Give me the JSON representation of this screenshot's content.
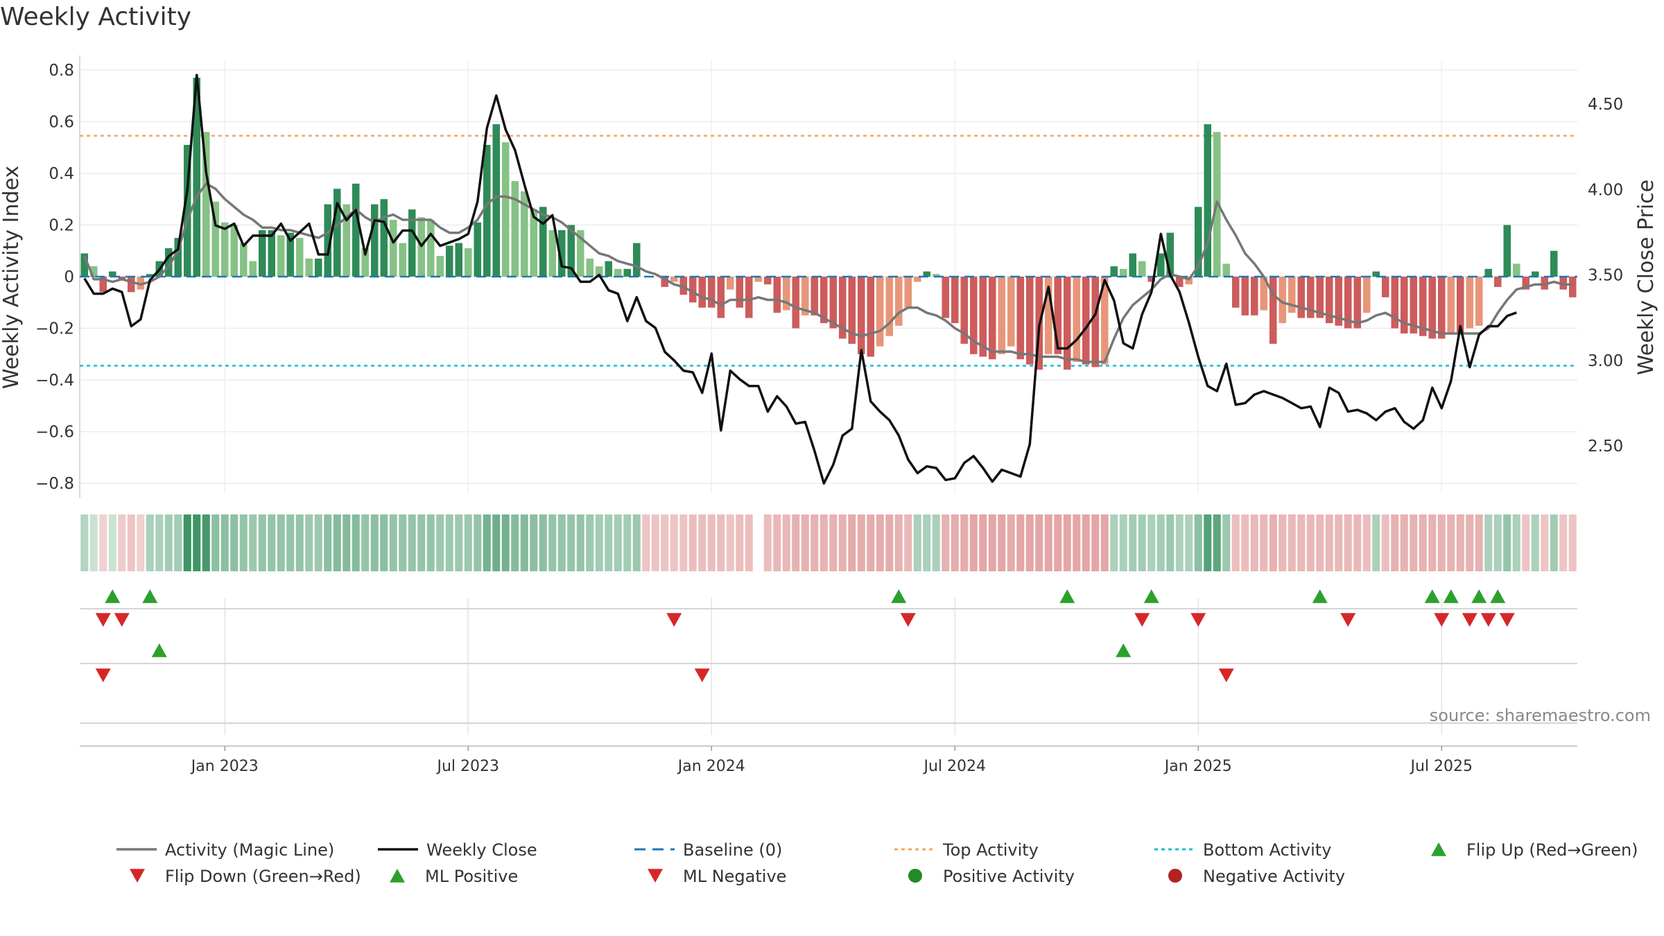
{
  "chart_data": {
    "type": "bar",
    "title": "Weekly Activity",
    "ylabel": "Weekly Activity Index",
    "y2label": "Weekly Close Price",
    "ylim": [
      -0.84,
      0.84
    ],
    "y2lim": [
      2.22,
      4.76
    ],
    "yticks": [
      {
        "v": 0.8,
        "label": "0.8"
      },
      {
        "v": 0.6,
        "label": "0.6"
      },
      {
        "v": 0.4,
        "label": "0.4"
      },
      {
        "v": 0.2,
        "label": "0.2"
      },
      {
        "v": 0,
        "label": "0"
      },
      {
        "v": -0.2,
        "label": "−0.2"
      },
      {
        "v": -0.4,
        "label": "−0.4"
      },
      {
        "v": -0.6,
        "label": "−0.6"
      },
      {
        "v": -0.8,
        "label": "−0.8"
      }
    ],
    "y2ticks": [
      {
        "v": 4.5,
        "label": "4.50"
      },
      {
        "v": 4.0,
        "label": "4.00"
      },
      {
        "v": 3.5,
        "label": "3.50"
      },
      {
        "v": 3.0,
        "label": "3.00"
      },
      {
        "v": 2.5,
        "label": "2.50"
      }
    ],
    "xticks": [
      {
        "i": 15,
        "label": "Jan 2023"
      },
      {
        "i": 41,
        "label": "Jul 2023"
      },
      {
        "i": 67,
        "label": "Jan 2024"
      },
      {
        "i": 93,
        "label": "Jul 2024"
      },
      {
        "i": 119,
        "label": "Jan 2025"
      },
      {
        "i": 145,
        "label": "Jul 2025"
      }
    ],
    "top_activity": 0.545,
    "bottom_activity": -0.345,
    "baseline": 0,
    "activity_bars": [
      0.09,
      0.04,
      -0.06,
      0.02,
      -0.01,
      -0.06,
      -0.05,
      0.01,
      0.06,
      0.11,
      0.15,
      0.51,
      0.77,
      0.56,
      0.29,
      0.21,
      0.2,
      0.13,
      0.06,
      0.18,
      0.18,
      0.16,
      0.17,
      0.15,
      0.07,
      0.07,
      0.28,
      0.34,
      0.28,
      0.36,
      0.11,
      0.28,
      0.3,
      0.22,
      0.13,
      0.26,
      0.23,
      0.22,
      0.08,
      0.12,
      0.13,
      0.11,
      0.21,
      0.51,
      0.59,
      0.52,
      0.37,
      0.33,
      0.26,
      0.27,
      0.18,
      0.18,
      0.2,
      0.18,
      0.07,
      0.04,
      0.06,
      0.03,
      0.03,
      0.13,
      0.0,
      0.0,
      -0.04,
      -0.02,
      -0.07,
      -0.1,
      -0.12,
      -0.12,
      -0.16,
      -0.05,
      -0.12,
      -0.16,
      -0.02,
      -0.03,
      -0.14,
      -0.13,
      -0.2,
      -0.15,
      -0.15,
      -0.18,
      -0.2,
      -0.24,
      -0.26,
      -0.3,
      -0.31,
      -0.27,
      -0.23,
      -0.19,
      -0.12,
      -0.02,
      0.02,
      0.01,
      -0.16,
      -0.18,
      -0.26,
      -0.3,
      -0.31,
      -0.32,
      -0.3,
      -0.27,
      -0.32,
      -0.34,
      -0.36,
      -0.3,
      -0.3,
      -0.36,
      -0.33,
      -0.34,
      -0.35,
      -0.34,
      0.04,
      0.03,
      0.09,
      0.06,
      -0.02,
      0.09,
      0.17,
      -0.04,
      -0.03,
      0.27,
      0.59,
      0.56,
      0.05,
      -0.12,
      -0.15,
      -0.15,
      -0.13,
      -0.26,
      -0.18,
      -0.14,
      -0.16,
      -0.16,
      -0.16,
      -0.18,
      -0.19,
      -0.2,
      -0.2,
      -0.14,
      0.02,
      -0.08,
      -0.2,
      -0.22,
      -0.22,
      -0.23,
      -0.24,
      -0.24,
      -0.22,
      -0.22,
      -0.2,
      -0.19,
      0.03,
      -0.04,
      0.2,
      0.05,
      -0.05,
      0.02,
      -0.05,
      0.1,
      -0.05,
      -0.08
    ],
    "activity_magic_line": [
      0.08,
      -0.01,
      -0.01,
      -0.02,
      -0.01,
      -0.02,
      -0.03,
      -0.02,
      0.0,
      0.04,
      0.1,
      0.22,
      0.31,
      0.36,
      0.34,
      0.3,
      0.27,
      0.24,
      0.22,
      0.19,
      0.19,
      0.18,
      0.18,
      0.17,
      0.16,
      0.15,
      0.17,
      0.2,
      0.23,
      0.26,
      0.23,
      0.21,
      0.23,
      0.24,
      0.22,
      0.22,
      0.22,
      0.22,
      0.19,
      0.17,
      0.17,
      0.19,
      0.22,
      0.28,
      0.31,
      0.31,
      0.3,
      0.28,
      0.26,
      0.24,
      0.23,
      0.21,
      0.18,
      0.15,
      0.12,
      0.09,
      0.08,
      0.06,
      0.05,
      0.04,
      0.02,
      0.01,
      -0.01,
      -0.03,
      -0.04,
      -0.06,
      -0.08,
      -0.09,
      -0.11,
      -0.09,
      -0.09,
      -0.09,
      -0.08,
      -0.09,
      -0.09,
      -0.1,
      -0.12,
      -0.13,
      -0.14,
      -0.16,
      -0.18,
      -0.2,
      -0.22,
      -0.23,
      -0.22,
      -0.21,
      -0.18,
      -0.14,
      -0.12,
      -0.12,
      -0.14,
      -0.15,
      -0.17,
      -0.2,
      -0.22,
      -0.25,
      -0.27,
      -0.29,
      -0.29,
      -0.29,
      -0.3,
      -0.3,
      -0.31,
      -0.31,
      -0.31,
      -0.32,
      -0.32,
      -0.33,
      -0.33,
      -0.33,
      -0.24,
      -0.16,
      -0.11,
      -0.08,
      -0.05,
      -0.01,
      0.01,
      0.0,
      -0.01,
      0.04,
      0.13,
      0.29,
      0.22,
      0.16,
      0.09,
      0.05,
      0.0,
      -0.07,
      -0.1,
      -0.11,
      -0.12,
      -0.13,
      -0.14,
      -0.15,
      -0.16,
      -0.17,
      -0.18,
      -0.17,
      -0.15,
      -0.14,
      -0.16,
      -0.18,
      -0.19,
      -0.2,
      -0.21,
      -0.22,
      -0.22,
      -0.22,
      -0.22,
      -0.22,
      -0.2,
      -0.14,
      -0.09,
      -0.05,
      -0.04,
      -0.03,
      -0.03,
      -0.02,
      -0.03,
      -0.03
    ],
    "weekly_close": [
      3.48,
      3.39,
      3.39,
      3.42,
      3.4,
      3.2,
      3.24,
      3.47,
      3.53,
      3.61,
      3.65,
      4.0,
      4.67,
      4.1,
      3.79,
      3.77,
      3.8,
      3.67,
      3.73,
      3.73,
      3.73,
      3.8,
      3.7,
      3.75,
      3.8,
      3.62,
      3.62,
      3.92,
      3.82,
      3.88,
      3.62,
      3.82,
      3.81,
      3.69,
      3.76,
      3.76,
      3.67,
      3.74,
      3.67,
      3.69,
      3.71,
      3.74,
      3.93,
      4.36,
      4.55,
      4.35,
      4.23,
      4.03,
      3.84,
      3.8,
      3.85,
      3.55,
      3.54,
      3.46,
      3.46,
      3.5,
      3.41,
      3.39,
      3.23,
      3.37,
      3.23,
      3.19,
      3.05,
      3.0,
      2.94,
      2.93,
      2.81,
      3.04,
      2.59,
      2.94,
      2.89,
      2.85,
      2.85,
      2.7,
      2.79,
      2.73,
      2.63,
      2.64,
      2.47,
      2.28,
      2.39,
      2.56,
      2.6,
      3.06,
      2.76,
      2.7,
      2.65,
      2.56,
      2.42,
      2.34,
      2.38,
      2.37,
      2.3,
      2.31,
      2.4,
      2.44,
      2.37,
      2.29,
      2.36,
      2.34,
      2.32,
      2.51,
      3.2,
      3.43,
      3.07,
      3.07,
      3.12,
      3.19,
      3.27,
      3.47,
      3.35,
      3.1,
      3.07,
      3.27,
      3.4,
      3.74,
      3.5,
      3.4,
      3.22,
      3.02,
      2.85,
      2.82,
      2.98,
      2.74,
      2.75,
      2.8,
      2.82,
      2.8,
      2.78,
      2.75,
      2.72,
      2.73,
      2.61,
      2.84,
      2.81,
      2.7,
      2.71,
      2.69,
      2.65,
      2.7,
      2.72,
      2.64,
      2.6,
      2.65,
      2.84,
      2.72,
      2.88,
      3.2,
      2.96,
      3.15,
      3.2,
      3.2,
      3.26,
      3.28
    ],
    "heat_strip": [
      0.25,
      0.1,
      -0.15,
      0.1,
      -0.2,
      -0.25,
      -0.15,
      0.3,
      0.3,
      0.35,
      0.35,
      1.0,
      1.0,
      0.95,
      0.5,
      0.5,
      0.5,
      0.45,
      0.4,
      0.45,
      0.45,
      0.45,
      0.45,
      0.45,
      0.4,
      0.4,
      0.5,
      0.55,
      0.55,
      0.55,
      0.45,
      0.5,
      0.5,
      0.45,
      0.45,
      0.45,
      0.45,
      0.45,
      0.4,
      0.4,
      0.4,
      0.4,
      0.45,
      0.65,
      0.7,
      0.65,
      0.55,
      0.55,
      0.5,
      0.5,
      0.45,
      0.45,
      0.45,
      0.45,
      0.4,
      0.35,
      0.35,
      0.35,
      0.35,
      0.4,
      -0.25,
      -0.25,
      -0.25,
      -0.25,
      -0.25,
      -0.3,
      -0.3,
      -0.3,
      -0.3,
      -0.25,
      -0.3,
      -0.3,
      null,
      -0.3,
      -0.35,
      -0.35,
      -0.4,
      -0.4,
      -0.4,
      -0.4,
      -0.4,
      -0.4,
      -0.45,
      -0.45,
      -0.45,
      -0.45,
      -0.45,
      -0.4,
      -0.35,
      0.3,
      0.3,
      0.3,
      -0.4,
      -0.45,
      -0.45,
      -0.5,
      -0.5,
      -0.5,
      -0.5,
      -0.45,
      -0.5,
      -0.5,
      -0.5,
      -0.5,
      -0.5,
      -0.5,
      -0.5,
      -0.5,
      -0.5,
      -0.5,
      0.3,
      0.3,
      0.35,
      0.35,
      0.3,
      0.35,
      0.4,
      0.3,
      0.3,
      0.5,
      0.85,
      0.8,
      0.4,
      -0.3,
      -0.3,
      -0.35,
      -0.35,
      -0.4,
      -0.35,
      -0.35,
      -0.35,
      -0.35,
      -0.35,
      -0.35,
      -0.35,
      -0.35,
      -0.35,
      -0.3,
      0.3,
      -0.3,
      -0.4,
      -0.4,
      -0.4,
      -0.4,
      -0.4,
      -0.4,
      -0.4,
      -0.4,
      -0.4,
      -0.4,
      0.3,
      0.3,
      0.45,
      0.3,
      -0.25,
      0.3,
      -0.25,
      0.35,
      -0.25,
      -0.25
    ],
    "flip_up": [
      3,
      7,
      87,
      105,
      114,
      132,
      144,
      146,
      149,
      151
    ],
    "flip_down": [
      2,
      4,
      63,
      88,
      113,
      119,
      135,
      145,
      148,
      150,
      152
    ],
    "ml_positive": [
      8,
      111
    ],
    "ml_negative": [
      2,
      66,
      122
    ],
    "colors": {
      "pos_dark": "#2e8b57",
      "pos_light": "#86c286",
      "neg_dark": "#cd5c5c",
      "neg_light": "#e8967a",
      "magic_line": "#777777",
      "close_line": "#111111",
      "baseline": "#1f77b4",
      "top_activity": "#f4a460",
      "bottom_activity": "#17becf",
      "marker_up": "#2ca02c",
      "marker_down": "#d62728",
      "positive_activity": "#228b22",
      "negative_activity": "#b22222"
    },
    "source": "source: sharemaestro.com",
    "legend": [
      {
        "key": "magic",
        "label": "Activity (Magic Line)"
      },
      {
        "key": "close",
        "label": "Weekly Close"
      },
      {
        "key": "baseline",
        "label": "Baseline (0)"
      },
      {
        "key": "top",
        "label": "Top Activity"
      },
      {
        "key": "bottom",
        "label": "Bottom Activity"
      },
      {
        "key": "flipup",
        "label": "Flip Up (Red→Green)"
      },
      {
        "key": "flipdown",
        "label": "Flip Down (Green→Red)"
      },
      {
        "key": "mlpos",
        "label": "ML Positive"
      },
      {
        "key": "mlneg",
        "label": "ML Negative"
      },
      {
        "key": "posact",
        "label": "Positive Activity"
      },
      {
        "key": "negact",
        "label": "Negative Activity"
      }
    ]
  }
}
